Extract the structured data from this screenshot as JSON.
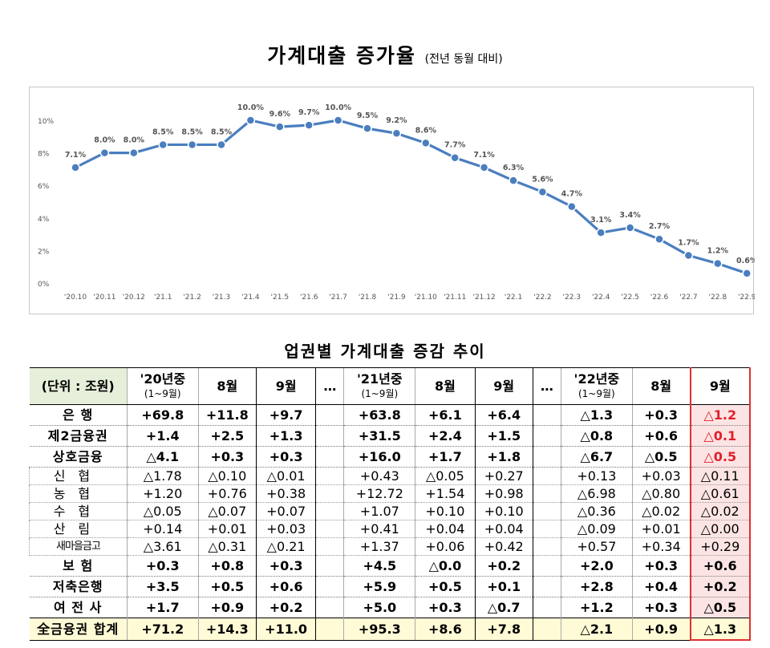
{
  "title": "가계대출  증가율",
  "title_sub": "(전년 동월 대비)",
  "chart_data": {
    "type": "line",
    "title": "가계대출 증가율 (전년 동월 대비)",
    "categories": [
      "'20.10",
      "'20.11",
      "'20.12",
      "'21.1",
      "'21.2",
      "'21.3",
      "'21.4",
      "'21.5",
      "'21.6",
      "'21.7",
      "'21.8",
      "'21.9",
      "'21.10",
      "'21.11",
      "'21.12",
      "'22.1",
      "'22.2",
      "'22.3",
      "'22.4",
      "'22.5",
      "'22.6",
      "'22.7",
      "'22.8",
      "'22.9"
    ],
    "values": [
      7.1,
      8.0,
      8.0,
      8.5,
      8.5,
      8.5,
      10.0,
      9.6,
      9.7,
      10.0,
      9.5,
      9.2,
      8.6,
      7.7,
      7.1,
      6.3,
      5.6,
      4.7,
      3.1,
      3.4,
      2.7,
      1.7,
      1.2,
      0.6
    ],
    "value_labels": [
      "7.1%",
      "8.0%",
      "8.0%",
      "8.5%",
      "8.5%",
      "8.5%",
      "10.0%",
      "9.6%",
      "9.7%",
      "10.0%",
      "9.5%",
      "9.2%",
      "8.6%",
      "7.7%",
      "7.1%",
      "6.3%",
      "5.6%",
      "4.7%",
      "3.1%",
      "3.4%",
      "2.7%",
      "1.7%",
      "1.2%",
      "0.6%"
    ],
    "y_ticks": [
      "0%",
      "2%",
      "4%",
      "6%",
      "8%",
      "10%"
    ],
    "ylim": [
      0,
      10
    ],
    "xlabel": "",
    "ylabel": "",
    "grid": false,
    "line_color": "#4a7ebf"
  },
  "table": {
    "title": "업권별  가계대출  증감  추이",
    "unit": "(단위 : 조원)",
    "headers": {
      "y20": "'20년중",
      "y20_sub": "(1~9월)",
      "m8a": "8월",
      "m9a": "9월",
      "dots": "…",
      "y21": "'21년중",
      "y21_sub": "(1~9월)",
      "m8b": "8월",
      "m9b": "9월",
      "y22": "'22년중",
      "y22_sub": "(1~9월)",
      "m8c": "8월",
      "m9c": "9월"
    },
    "rows": [
      {
        "name": "은      행",
        "v": [
          "+69.8",
          "+11.8",
          "+9.7",
          "+63.8",
          "+6.1",
          "+6.4",
          "△1.3",
          "+0.3",
          "△1.2"
        ]
      },
      {
        "name": "제2금융권",
        "v": [
          "+1.4",
          "+2.5",
          "+1.3",
          "+31.5",
          "+2.4",
          "+1.5",
          "△0.8",
          "+0.6",
          "△0.1"
        ]
      },
      {
        "name": "상호금융",
        "v": [
          "△4.1",
          "+0.3",
          "+0.3",
          "+16.0",
          "+1.7",
          "+1.8",
          "△6.7",
          "△0.5",
          "△0.5"
        ]
      },
      {
        "name": "신협",
        "v": [
          "△1.78",
          "△0.10",
          "△0.01",
          "+0.43",
          "△0.05",
          "+0.27",
          "+0.13",
          "+0.03",
          "△0.11"
        ]
      },
      {
        "name": "농협",
        "v": [
          "+1.20",
          "+0.76",
          "+0.38",
          "+12.72",
          "+1.54",
          "+0.98",
          "△6.98",
          "△0.80",
          "△0.61"
        ]
      },
      {
        "name": "수협",
        "v": [
          "△0.05",
          "△0.07",
          "+0.07",
          "+1.07",
          "+0.10",
          "+0.10",
          "△0.36",
          "△0.02",
          "△0.02"
        ]
      },
      {
        "name": "산림",
        "v": [
          "+0.14",
          "+0.01",
          "+0.03",
          "+0.41",
          "+0.04",
          "+0.04",
          "△0.09",
          "+0.01",
          "△0.00"
        ]
      },
      {
        "name": "새마을금고",
        "v": [
          "△3.61",
          "△0.31",
          "△0.21",
          "+1.37",
          "+0.06",
          "+0.42",
          "+0.57",
          "+0.34",
          "+0.29"
        ]
      },
      {
        "name": "보      험",
        "v": [
          "+0.3",
          "+0.8",
          "+0.3",
          "+4.5",
          "△0.0",
          "+0.2",
          "+2.0",
          "+0.3",
          "+0.6"
        ]
      },
      {
        "name": "저축은행",
        "v": [
          "+3.5",
          "+0.5",
          "+0.6",
          "+5.9",
          "+0.5",
          "+0.1",
          "+2.8",
          "+0.4",
          "+0.2"
        ]
      },
      {
        "name": "여 전 사",
        "v": [
          "+1.7",
          "+0.9",
          "+0.2",
          "+5.0",
          "+0.3",
          "△0.7",
          "+1.2",
          "+0.3",
          "△0.5"
        ]
      },
      {
        "name": "全금융권 합계",
        "v": [
          "+71.2",
          "+14.3",
          "+11.0",
          "+95.3",
          "+8.6",
          "+7.8",
          "△2.1",
          "+0.9",
          "△1.3"
        ]
      }
    ]
  }
}
